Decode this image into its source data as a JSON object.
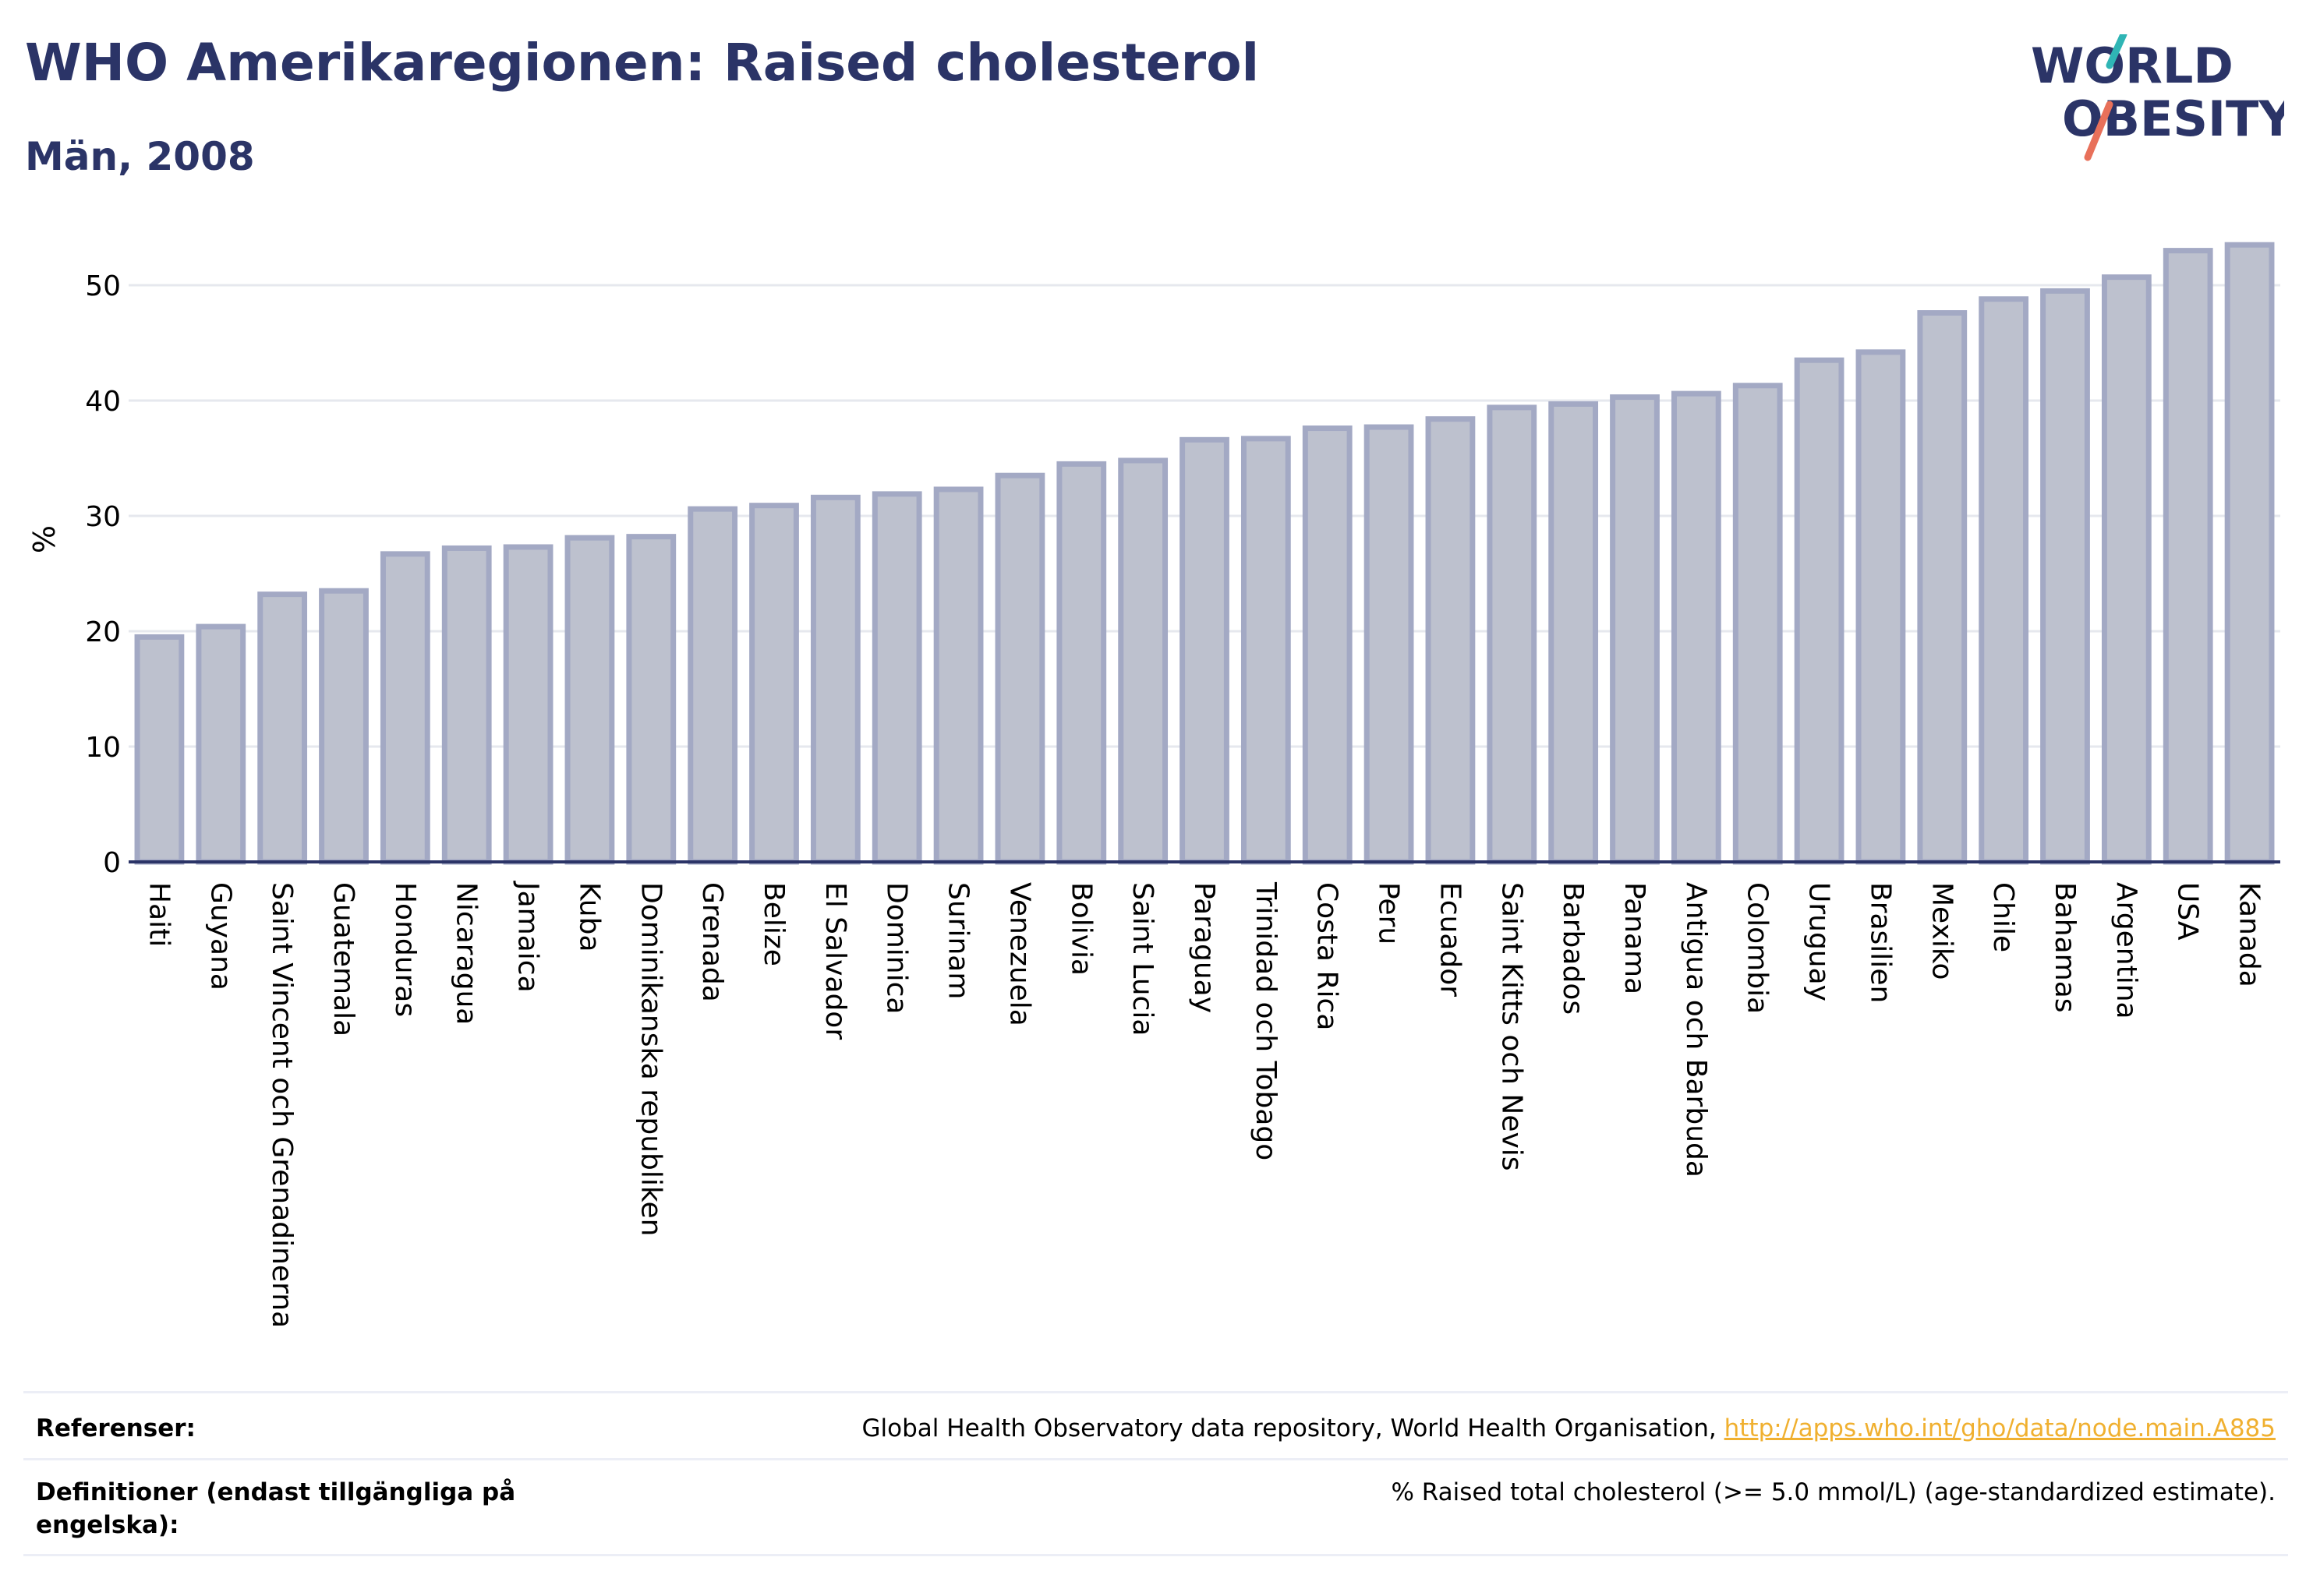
{
  "header": {
    "title": "WHO Amerikaregionen: Raised cholesterol",
    "subtitle": "Män, 2008"
  },
  "logo": {
    "line1": "WORLD",
    "line2": "OBESITY",
    "text_color": "#2b3467",
    "slash_color_top": "#2fb5b5",
    "slash_color_bottom": "#e8705a"
  },
  "colors": {
    "bar_fill": "#bdc1ce",
    "bar_stroke": "#a3a9c4",
    "axis": "#2b3467",
    "grid": "#e6e8ee",
    "text": "#2b3467"
  },
  "chart_data": {
    "type": "bar",
    "ylabel": "%",
    "ylim": [
      0,
      55
    ],
    "yticks": [
      0,
      10,
      20,
      30,
      40,
      50
    ],
    "grid": true,
    "categories": [
      "Haiti",
      "Guyana",
      "Saint Vincent och Grenadinerna",
      "Guatemala",
      "Honduras",
      "Nicaragua",
      "Jamaica",
      "Kuba",
      "Dominikanska republiken",
      "Grenada",
      "Belize",
      "El Salvador",
      "Dominica",
      "Surinam",
      "Venezuela",
      "Bolivia",
      "Saint Lucia",
      "Paraguay",
      "Trinidad och Tobago",
      "Costa Rica",
      "Peru",
      "Ecuador",
      "Saint Kitts och Nevis",
      "Barbados",
      "Panama",
      "Antigua och Barbuda",
      "Colombia",
      "Uruguay",
      "Brasilien",
      "Mexiko",
      "Chile",
      "Bahamas",
      "Argentina",
      "USA",
      "Kanada"
    ],
    "values": [
      19.5,
      20.4,
      23.2,
      23.5,
      26.7,
      27.2,
      27.3,
      28.1,
      28.2,
      30.6,
      30.9,
      31.6,
      31.9,
      32.3,
      33.5,
      34.5,
      34.8,
      36.6,
      36.7,
      37.6,
      37.7,
      38.4,
      39.4,
      39.7,
      40.3,
      40.6,
      41.3,
      43.5,
      44.2,
      47.6,
      48.8,
      49.5,
      50.7,
      53.0,
      53.5
    ]
  },
  "footer": {
    "references_label": "Referenser:",
    "references_text": "Global Health Observatory data repository, World Health Organisation, ",
    "references_link": "http://apps.who.int/gho/data/node.main.A885",
    "definitions_label": "Definitioner (endast tillgängliga på engelska):",
    "definitions_text": "% Raised total cholesterol (>= 5.0 mmol/L) (age-standardized estimate)."
  }
}
